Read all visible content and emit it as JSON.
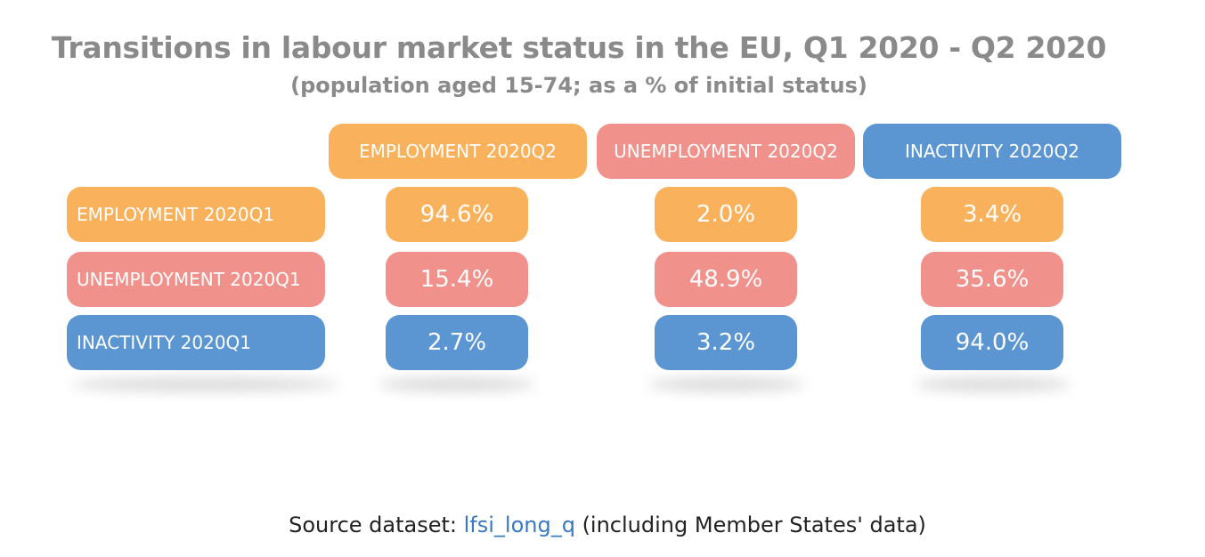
{
  "colors": {
    "employment": "#f9b25b",
    "unemployment": "#f1918c",
    "inactivity": "#5b96d2",
    "title": "#8a8a8a",
    "link": "#3a78c2"
  },
  "chart_data": {
    "type": "table",
    "title": "Transitions in labour market status in the EU, Q1 2020 - Q2 2020",
    "subtitle": "(population aged 15-74; as a % of initial status)",
    "columns": [
      "EMPLOYMENT 2020Q2",
      "UNEMPLOYMENT 2020Q2",
      "INACTIVITY 2020Q2"
    ],
    "rows": [
      {
        "label": "EMPLOYMENT 2020Q1",
        "values": [
          "94.6%",
          "2.0%",
          "3.4%"
        ]
      },
      {
        "label": "UNEMPLOYMENT 2020Q1",
        "values": [
          "15.4%",
          "48.9%",
          "35.6%"
        ]
      },
      {
        "label": "INACTIVITY 2020Q1",
        "values": [
          "2.7%",
          "3.2%",
          "94.0%"
        ]
      }
    ]
  },
  "source": {
    "prefix": "Source dataset: ",
    "link": "lfsi_long_q",
    "suffix": " (including Member States' data)"
  }
}
